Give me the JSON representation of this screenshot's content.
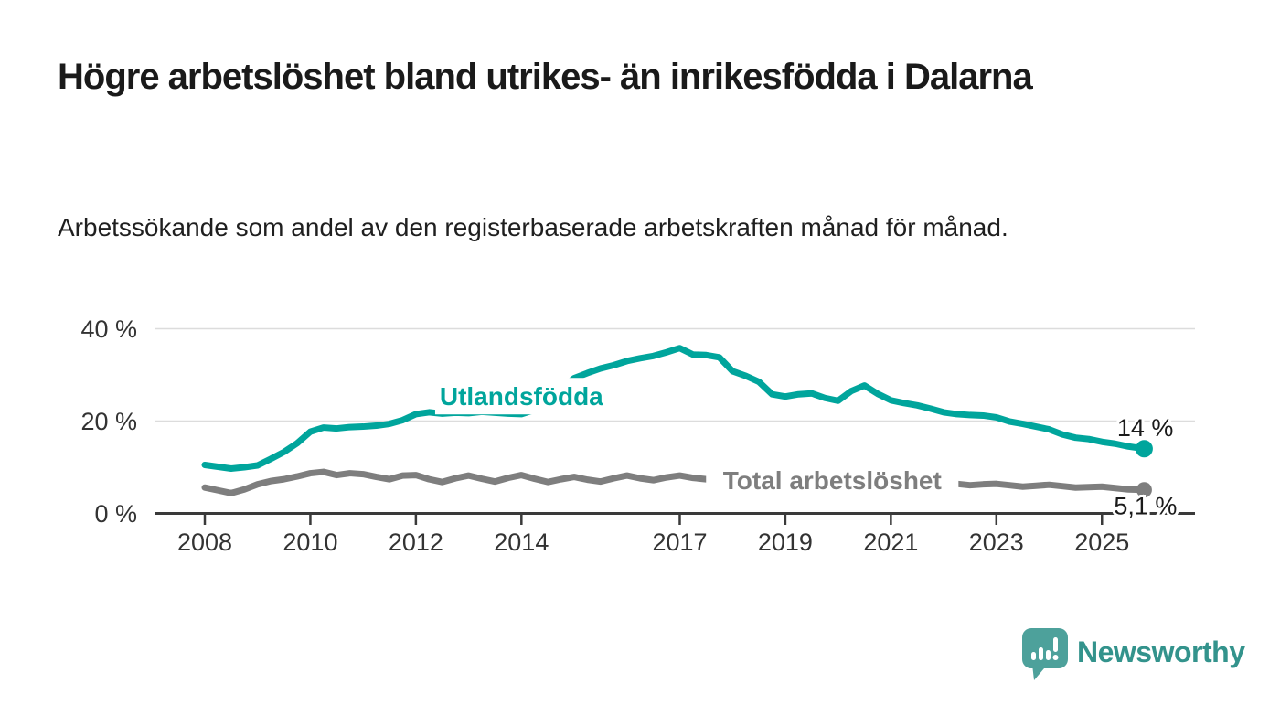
{
  "header": {
    "title": "Högre arbetslöshet bland utrikes- än inrikesfödda i Dalarna",
    "subtitle": "Arbetssökande som andel av den registerbaserade arbetskraften månad för månad."
  },
  "footer": {
    "brand": "Newsworthy"
  },
  "colors": {
    "teal_series": "#00a59c",
    "gray_series": "#7e7e7e",
    "axis": "#3a3a3a",
    "grid": "#dcdcdc",
    "text": "#1a1a1a",
    "logo_bubble": "#4da19b",
    "logo_text": "#33938c"
  },
  "chart_data": {
    "type": "line",
    "x_unit": "decimal_year",
    "ylim": [
      0,
      40
    ],
    "xlim": [
      2007.1,
      2026.8
    ],
    "grid": "horizontal-only",
    "legend_position": "inline-labels",
    "yticks": [
      {
        "v": 0,
        "label": "0 %"
      },
      {
        "v": 20,
        "label": "20 %"
      },
      {
        "v": 40,
        "label": "40 %"
      }
    ],
    "xticks": [
      {
        "v": 2008,
        "label": "2008"
      },
      {
        "v": 2010,
        "label": "2010"
      },
      {
        "v": 2012,
        "label": "2012"
      },
      {
        "v": 2014,
        "label": "2014"
      },
      {
        "v": 2017,
        "label": "2017"
      },
      {
        "v": 2019,
        "label": "2019"
      },
      {
        "v": 2021,
        "label": "2021"
      },
      {
        "v": 2023,
        "label": "2023"
      },
      {
        "v": 2025,
        "label": "2025"
      }
    ],
    "series": [
      {
        "name": "Utlandsfödda",
        "color": "#00a59c",
        "end_label": "14 %",
        "end_value": 14,
        "label_anchor": {
          "x": 2014.0,
          "y": 25.4
        },
        "points": [
          [
            2008,
            10.5
          ],
          [
            2008.25,
            10.1
          ],
          [
            2008.5,
            9.7
          ],
          [
            2008.75,
            10
          ],
          [
            2009,
            10.4
          ],
          [
            2009.25,
            11.8
          ],
          [
            2009.5,
            13.3
          ],
          [
            2009.75,
            15.2
          ],
          [
            2010,
            17.7
          ],
          [
            2010.25,
            18.6
          ],
          [
            2010.5,
            18.4
          ],
          [
            2010.75,
            18.7
          ],
          [
            2011,
            18.8
          ],
          [
            2011.25,
            19
          ],
          [
            2011.5,
            19.4
          ],
          [
            2011.75,
            20.2
          ],
          [
            2012,
            21.5
          ],
          [
            2012.25,
            21.9
          ],
          [
            2012.5,
            21.6
          ],
          [
            2012.75,
            21.8
          ],
          [
            2013,
            21.7
          ],
          [
            2013.25,
            22
          ],
          [
            2013.5,
            21.8
          ],
          [
            2013.75,
            21.6
          ],
          [
            2014,
            21.5
          ],
          [
            2014.25,
            22.4
          ],
          [
            2014.5,
            24.5
          ],
          [
            2014.75,
            27
          ],
          [
            2015,
            29.3
          ],
          [
            2015.25,
            30.4
          ],
          [
            2015.5,
            31.4
          ],
          [
            2015.75,
            32.1
          ],
          [
            2016,
            33
          ],
          [
            2016.25,
            33.6
          ],
          [
            2016.5,
            34.1
          ],
          [
            2016.75,
            34.9
          ],
          [
            2017,
            35.8
          ],
          [
            2017.25,
            34.4
          ],
          [
            2017.5,
            34.3
          ],
          [
            2017.75,
            33.8
          ],
          [
            2018,
            30.8
          ],
          [
            2018.25,
            29.8
          ],
          [
            2018.5,
            28.5
          ],
          [
            2018.75,
            25.8
          ],
          [
            2019,
            25.3
          ],
          [
            2019.25,
            25.8
          ],
          [
            2019.5,
            26
          ],
          [
            2019.75,
            25
          ],
          [
            2020,
            24.4
          ],
          [
            2020.25,
            26.5
          ],
          [
            2020.5,
            27.7
          ],
          [
            2020.75,
            25.9
          ],
          [
            2021,
            24.5
          ],
          [
            2021.25,
            23.9
          ],
          [
            2021.5,
            23.4
          ],
          [
            2021.75,
            22.7
          ],
          [
            2022,
            21.9
          ],
          [
            2022.25,
            21.5
          ],
          [
            2022.5,
            21.3
          ],
          [
            2022.75,
            21.2
          ],
          [
            2023,
            20.8
          ],
          [
            2023.25,
            19.9
          ],
          [
            2023.5,
            19.4
          ],
          [
            2023.75,
            18.8
          ],
          [
            2024,
            18.2
          ],
          [
            2024.25,
            17.1
          ],
          [
            2024.5,
            16.4
          ],
          [
            2024.75,
            16.1
          ],
          [
            2025,
            15.5
          ],
          [
            2025.25,
            15.1
          ],
          [
            2025.5,
            14.5
          ],
          [
            2025.8,
            14
          ]
        ]
      },
      {
        "name": "Total arbetslöshet",
        "color": "#7e7e7e",
        "end_label": "5,1 %",
        "end_value": 5.1,
        "label_anchor": {
          "x": 2019.89,
          "y": 7.2
        },
        "points": [
          [
            2008,
            5.6
          ],
          [
            2008.25,
            5
          ],
          [
            2008.5,
            4.4
          ],
          [
            2008.75,
            5.2
          ],
          [
            2009,
            6.3
          ],
          [
            2009.25,
            7
          ],
          [
            2009.5,
            7.4
          ],
          [
            2009.75,
            8
          ],
          [
            2010,
            8.7
          ],
          [
            2010.25,
            9
          ],
          [
            2010.5,
            8.3
          ],
          [
            2010.75,
            8.7
          ],
          [
            2011,
            8.5
          ],
          [
            2011.25,
            7.9
          ],
          [
            2011.5,
            7.4
          ],
          [
            2011.75,
            8.2
          ],
          [
            2012,
            8.3
          ],
          [
            2012.25,
            7.4
          ],
          [
            2012.5,
            6.8
          ],
          [
            2012.75,
            7.6
          ],
          [
            2013,
            8.2
          ],
          [
            2013.25,
            7.5
          ],
          [
            2013.5,
            6.9
          ],
          [
            2013.75,
            7.7
          ],
          [
            2014,
            8.3
          ],
          [
            2014.25,
            7.5
          ],
          [
            2014.5,
            6.8
          ],
          [
            2014.75,
            7.4
          ],
          [
            2015,
            7.9
          ],
          [
            2015.25,
            7.3
          ],
          [
            2015.5,
            6.9
          ],
          [
            2015.75,
            7.6
          ],
          [
            2016,
            8.2
          ],
          [
            2016.25,
            7.6
          ],
          [
            2016.5,
            7.2
          ],
          [
            2016.75,
            7.8
          ],
          [
            2017,
            8.2
          ],
          [
            2017.25,
            7.7
          ],
          [
            2017.5,
            7.4
          ],
          [
            2017.75,
            7.7
          ],
          [
            2018,
            7.8
          ],
          [
            2018.25,
            7.3
          ],
          [
            2018.5,
            6.9
          ],
          [
            2018.75,
            7.2
          ],
          [
            2019,
            7.4
          ],
          [
            2019.25,
            7.1
          ],
          [
            2019.5,
            6.9
          ],
          [
            2019.75,
            7
          ],
          [
            2020,
            7.2
          ],
          [
            2020.25,
            8.2
          ],
          [
            2020.5,
            8.2
          ],
          [
            2020.75,
            8.1
          ],
          [
            2021,
            8
          ],
          [
            2021.25,
            7.6
          ],
          [
            2021.5,
            7.2
          ],
          [
            2021.75,
            7
          ],
          [
            2022,
            6.8
          ],
          [
            2022.25,
            6.4
          ],
          [
            2022.5,
            6.1
          ],
          [
            2022.75,
            6.3
          ],
          [
            2023,
            6.4
          ],
          [
            2023.25,
            6.1
          ],
          [
            2023.5,
            5.8
          ],
          [
            2023.75,
            6
          ],
          [
            2024,
            6.2
          ],
          [
            2024.25,
            5.9
          ],
          [
            2024.5,
            5.6
          ],
          [
            2024.75,
            5.7
          ],
          [
            2025,
            5.8
          ],
          [
            2025.25,
            5.5
          ],
          [
            2025.5,
            5.2
          ],
          [
            2025.8,
            5.1
          ]
        ]
      }
    ]
  }
}
